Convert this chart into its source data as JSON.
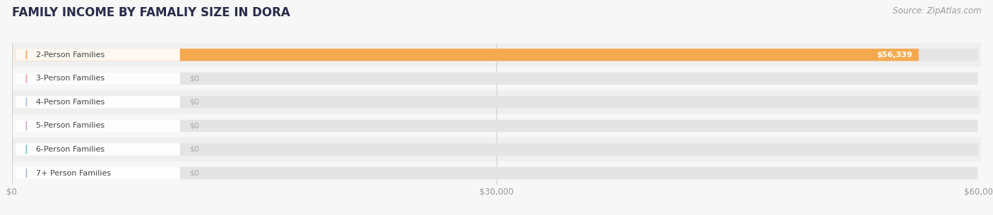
{
  "title": "FAMILY INCOME BY FAMALIY SIZE IN DORA",
  "source": "Source: ZipAtlas.com",
  "categories": [
    "2-Person Families",
    "3-Person Families",
    "4-Person Families",
    "5-Person Families",
    "6-Person Families",
    "7+ Person Families"
  ],
  "values": [
    56339,
    0,
    0,
    0,
    0,
    0
  ],
  "bar_colors": [
    "#f5a94e",
    "#f0a0a8",
    "#a8c4e0",
    "#d0a8d8",
    "#70c8be",
    "#b0b8e0"
  ],
  "dot_colors": [
    "#f5a94e",
    "#f0a0a8",
    "#a8c4e0",
    "#d0a8d8",
    "#70c8be",
    "#b0b8e0"
  ],
  "xmax": 60000,
  "xticks": [
    0,
    30000,
    60000
  ],
  "xtick_labels": [
    "$0",
    "$30,000",
    "$60,000"
  ],
  "background_color": "#f7f7f7",
  "bar_bg_color": "#e4e4e4",
  "row_bg_colors": [
    "#efefef",
    "#f7f7f7"
  ],
  "title_color": "#2a2a4a",
  "title_fontsize": 12,
  "source_fontsize": 8.5,
  "label_fontsize": 8.0,
  "value_fontsize": 8.0,
  "bar_height": 0.52
}
